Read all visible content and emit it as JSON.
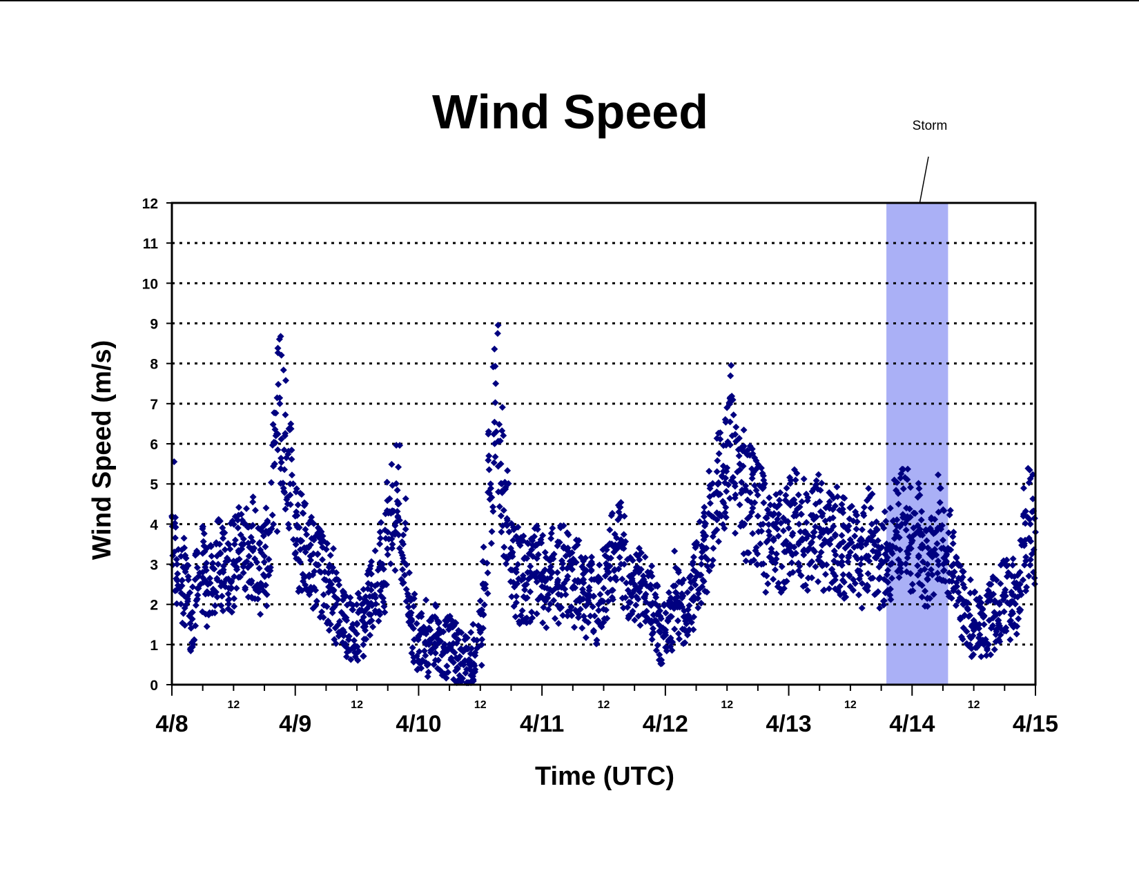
{
  "chart_data": {
    "type": "scatter",
    "title": "Wind Speed",
    "xlabel": "Time (UTC)",
    "ylabel": "Wind Speed (m/s)",
    "ylim": [
      0,
      12
    ],
    "yticks": [
      "0",
      "1",
      "2",
      "3",
      "4",
      "5",
      "6",
      "7",
      "8",
      "9",
      "10",
      "11",
      "12"
    ],
    "xlim": [
      "4/8 00:00",
      "4/15 00:00"
    ],
    "x_major_ticks": [
      "4/8",
      "4/9",
      "4/10",
      "4/11",
      "4/12",
      "4/13",
      "4/14",
      "4/15"
    ],
    "x_minor_tick_label": "12",
    "grid": "horizontal dotted",
    "legend": "none",
    "marker": "diamond",
    "marker_color": "#000080",
    "storm_band": {
      "label": "Storm",
      "start": "4/13 19:00",
      "end": "4/14 07:00",
      "color": "#aab0f6"
    },
    "series": [
      {
        "values_description_omitted": false,
        "points": [
          [
            "4/8 00:00",
            4.2
          ],
          [
            "4/8 01:00",
            3.0
          ],
          [
            "4/8 02:00",
            2.6
          ],
          [
            "4/8 03:00",
            2.2
          ],
          [
            "4/8 04:00",
            1.8
          ],
          [
            "4/8 05:00",
            2.4
          ],
          [
            "4/8 06:00",
            2.8
          ],
          [
            "4/8 07:00",
            2.5
          ],
          [
            "4/8 08:00",
            2.9
          ],
          [
            "4/8 09:00",
            3.0
          ],
          [
            "4/8 10:00",
            2.8
          ],
          [
            "4/8 11:00",
            3.1
          ],
          [
            "4/8 12:00",
            3.0
          ],
          [
            "4/8 13:00",
            3.3
          ],
          [
            "4/8 14:00",
            3.5
          ],
          [
            "4/8 15:00",
            3.2
          ],
          [
            "4/8 16:00",
            3.4
          ],
          [
            "4/8 17:00",
            2.9
          ],
          [
            "4/8 18:00",
            3.2
          ],
          [
            "4/8 19:00",
            3.8
          ],
          [
            "4/8 20:00",
            5.5
          ],
          [
            "4/8 21:00",
            7.0
          ],
          [
            "4/8 22:00",
            6.2
          ],
          [
            "4/8 23:00",
            5.0
          ],
          [
            "4/9 00:00",
            4.2
          ],
          [
            "4/9 01:00",
            3.6
          ],
          [
            "4/9 02:00",
            3.3
          ],
          [
            "4/9 03:00",
            3.1
          ],
          [
            "4/9 04:00",
            3.0
          ],
          [
            "4/9 05:00",
            2.8
          ],
          [
            "4/9 06:00",
            2.6
          ],
          [
            "4/9 07:00",
            2.4
          ],
          [
            "4/9 08:00",
            2.0
          ],
          [
            "4/9 09:00",
            1.8
          ],
          [
            "4/9 10:00",
            1.6
          ],
          [
            "4/9 11:00",
            1.4
          ],
          [
            "4/9 12:00",
            1.5
          ],
          [
            "4/9 13:00",
            1.6
          ],
          [
            "4/9 14:00",
            1.9
          ],
          [
            "4/9 15:00",
            2.2
          ],
          [
            "4/9 16:00",
            2.5
          ],
          [
            "4/9 17:00",
            3.0
          ],
          [
            "4/9 18:00",
            3.8
          ],
          [
            "4/9 19:00",
            4.3
          ],
          [
            "4/9 20:00",
            4.5
          ],
          [
            "4/9 21:00",
            3.5
          ],
          [
            "4/9 22:00",
            2.2
          ],
          [
            "4/9 23:00",
            1.4
          ],
          [
            "4/10 00:00",
            1.2
          ],
          [
            "4/10 01:00",
            1.3
          ],
          [
            "4/10 02:00",
            1.0
          ],
          [
            "4/10 03:00",
            1.2
          ],
          [
            "4/10 04:00",
            1.1
          ],
          [
            "4/10 05:00",
            0.9
          ],
          [
            "4/10 06:00",
            1.0
          ],
          [
            "4/10 07:00",
            0.8
          ],
          [
            "4/10 08:00",
            0.7
          ],
          [
            "4/10 09:00",
            0.6
          ],
          [
            "4/10 10:00",
            0.6
          ],
          [
            "4/10 11:00",
            0.8
          ],
          [
            "4/10 12:00",
            1.3
          ],
          [
            "4/10 13:00",
            2.5
          ],
          [
            "4/10 14:00",
            5.0
          ],
          [
            "4/10 15:00",
            7.5
          ],
          [
            "4/10 16:00",
            5.5
          ],
          [
            "4/10 17:00",
            4.0
          ],
          [
            "4/10 18:00",
            3.2
          ],
          [
            "4/10 19:00",
            2.8
          ],
          [
            "4/10 20:00",
            2.6
          ],
          [
            "4/10 21:00",
            2.5
          ],
          [
            "4/10 22:00",
            2.7
          ],
          [
            "4/10 23:00",
            2.8
          ],
          [
            "4/11 00:00",
            2.6
          ],
          [
            "4/11 01:00",
            2.4
          ],
          [
            "4/11 02:00",
            2.8
          ],
          [
            "4/11 03:00",
            2.5
          ],
          [
            "4/11 04:00",
            2.9
          ],
          [
            "4/11 05:00",
            2.7
          ],
          [
            "4/11 06:00",
            2.4
          ],
          [
            "4/11 07:00",
            2.6
          ],
          [
            "4/11 08:00",
            2.3
          ],
          [
            "4/11 09:00",
            2.1
          ],
          [
            "4/11 10:00",
            2.2
          ],
          [
            "4/11 11:00",
            2.0
          ],
          [
            "4/11 12:00",
            2.4
          ],
          [
            "4/11 13:00",
            2.8
          ],
          [
            "4/11 14:00",
            3.3
          ],
          [
            "4/11 15:00",
            3.5
          ],
          [
            "4/11 16:00",
            3.0
          ],
          [
            "4/11 17:00",
            2.7
          ],
          [
            "4/11 18:00",
            2.5
          ],
          [
            "4/11 19:00",
            2.4
          ],
          [
            "4/11 20:00",
            2.2
          ],
          [
            "4/11 21:00",
            2.0
          ],
          [
            "4/11 22:00",
            1.6
          ],
          [
            "4/11 23:00",
            1.3
          ],
          [
            "4/12 00:00",
            1.3
          ],
          [
            "4/12 01:00",
            1.7
          ],
          [
            "4/12 02:00",
            2.3
          ],
          [
            "4/12 03:00",
            2.0
          ],
          [
            "4/12 04:00",
            1.7
          ],
          [
            "4/12 05:00",
            2.4
          ],
          [
            "4/12 06:00",
            2.8
          ],
          [
            "4/12 07:00",
            3.0
          ],
          [
            "4/12 08:00",
            3.4
          ],
          [
            "4/12 09:00",
            4.2
          ],
          [
            "4/12 10:00",
            4.8
          ],
          [
            "4/12 11:00",
            5.2
          ],
          [
            "4/12 12:00",
            5.4
          ],
          [
            "4/12 13:00",
            6.2
          ],
          [
            "4/12 14:00",
            5.3
          ],
          [
            "4/12 15:00",
            4.8
          ],
          [
            "4/12 16:00",
            4.6
          ],
          [
            "4/12 17:00",
            4.4
          ],
          [
            "4/12 18:00",
            4.2
          ],
          [
            "4/12 19:00",
            4.0
          ],
          [
            "4/12 20:00",
            3.6
          ],
          [
            "4/12 21:00",
            4.0
          ],
          [
            "4/12 22:00",
            3.7
          ],
          [
            "4/12 23:00",
            3.5
          ],
          [
            "4/13 00:00",
            3.9
          ],
          [
            "4/13 01:00",
            4.2
          ],
          [
            "4/13 02:00",
            4.0
          ],
          [
            "4/13 03:00",
            3.8
          ],
          [
            "4/13 04:00",
            3.4
          ],
          [
            "4/13 05:00",
            3.8
          ],
          [
            "4/13 06:00",
            3.9
          ],
          [
            "4/13 07:00",
            3.6
          ],
          [
            "4/13 08:00",
            3.5
          ],
          [
            "4/13 09:00",
            3.7
          ],
          [
            "4/13 10:00",
            3.5
          ],
          [
            "4/13 11:00",
            3.4
          ],
          [
            "4/13 12:00",
            3.3
          ],
          [
            "4/13 13:00",
            3.2
          ],
          [
            "4/13 14:00",
            3.0
          ],
          [
            "4/13 15:00",
            3.5
          ],
          [
            "4/13 16:00",
            3.6
          ],
          [
            "4/13 17:00",
            3.3
          ],
          [
            "4/13 18:00",
            3.0
          ],
          [
            "4/13 19:00",
            3.1
          ],
          [
            "4/13 20:00",
            3.4
          ],
          [
            "4/13 21:00",
            3.8
          ],
          [
            "4/13 22:00",
            4.0
          ],
          [
            "4/13 23:00",
            4.1
          ],
          [
            "4/14 00:00",
            3.6
          ],
          [
            "4/14 01:00",
            3.8
          ],
          [
            "4/14 02:00",
            3.4
          ],
          [
            "4/14 03:00",
            3.0
          ],
          [
            "4/14 04:00",
            3.3
          ],
          [
            "4/14 05:00",
            3.9
          ],
          [
            "4/14 06:00",
            3.6
          ],
          [
            "4/14 07:00",
            3.4
          ],
          [
            "4/14 08:00",
            2.7
          ],
          [
            "4/14 09:00",
            2.3
          ],
          [
            "4/14 10:00",
            2.0
          ],
          [
            "4/14 11:00",
            1.7
          ],
          [
            "4/14 12:00",
            1.6
          ],
          [
            "4/14 13:00",
            1.4
          ],
          [
            "4/14 14:00",
            1.5
          ],
          [
            "4/14 15:00",
            1.6
          ],
          [
            "4/14 16:00",
            1.8
          ],
          [
            "4/14 17:00",
            2.0
          ],
          [
            "4/14 18:00",
            2.3
          ],
          [
            "4/14 19:00",
            2.0
          ],
          [
            "4/14 20:00",
            2.2
          ],
          [
            "4/14 21:00",
            2.8
          ],
          [
            "4/14 22:00",
            3.6
          ],
          [
            "4/14 23:00",
            4.0
          ],
          [
            "4/15 00:00",
            3.8
          ]
        ]
      }
    ]
  }
}
